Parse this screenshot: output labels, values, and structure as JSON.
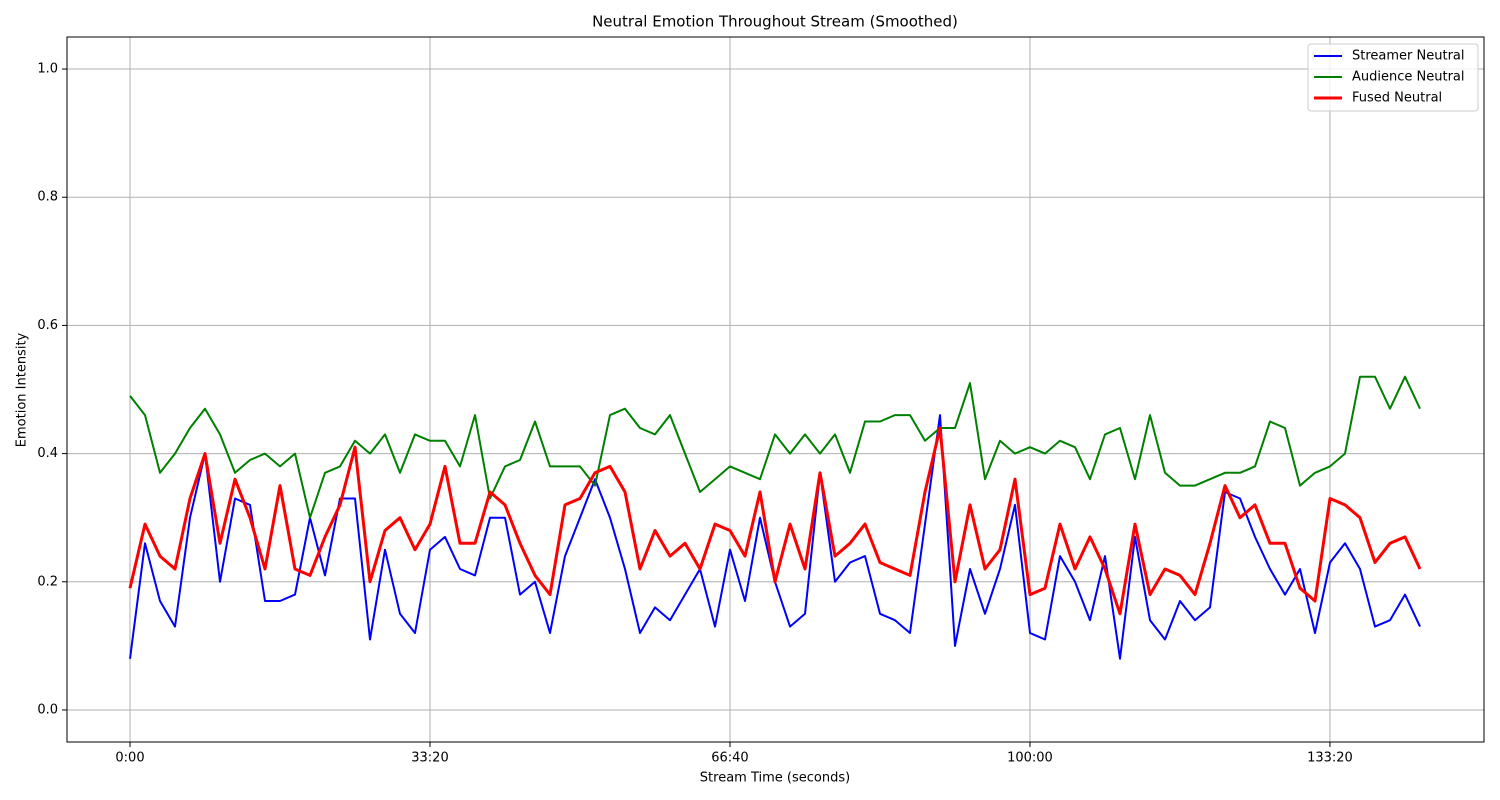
{
  "chart_data": {
    "type": "line",
    "title": "Neutral Emotion Throughout Stream (Smoothed)",
    "xlabel": "Stream Time (seconds)",
    "ylabel": "Emotion Intensity",
    "xlim": [
      -420,
      9027
    ],
    "ylim": [
      -0.05,
      1.05
    ],
    "xticks": [
      {
        "value": 0,
        "label": "0:00"
      },
      {
        "value": 2000,
        "label": "33:20"
      },
      {
        "value": 4000,
        "label": "66:40"
      },
      {
        "value": 6000,
        "label": "100:00"
      },
      {
        "value": 8000,
        "label": "133:20"
      }
    ],
    "yticks": [
      {
        "value": 0,
        "label": "0.0"
      },
      0.2,
      0.4,
      0.6,
      0.8,
      {
        "value": 1,
        "label": "1.0"
      }
    ],
    "grid": true,
    "legend": "upper right",
    "x": [
      0,
      100,
      200,
      300,
      400,
      500,
      600,
      700,
      800,
      900,
      1000,
      1100,
      1200,
      1300,
      1400,
      1500,
      1600,
      1700,
      1800,
      1900,
      2000,
      2100,
      2200,
      2300,
      2400,
      2500,
      2600,
      2700,
      2800,
      2900,
      3000,
      3100,
      3200,
      3300,
      3400,
      3500,
      3600,
      3700,
      3800,
      3900,
      4000,
      4100,
      4200,
      4300,
      4400,
      4500,
      4600,
      4700,
      4800,
      4900,
      5000,
      5100,
      5200,
      5300,
      5400,
      5500,
      5600,
      5700,
      5800,
      5900,
      6000,
      6100,
      6200,
      6300,
      6400,
      6500,
      6600,
      6700,
      6800,
      6900,
      7000,
      7100,
      7200,
      7300,
      7400,
      7500,
      7600,
      7700,
      7800,
      7900,
      8000,
      8100,
      8200,
      8300,
      8400,
      8500,
      8600
    ],
    "series": [
      {
        "name": "Streamer Neutral",
        "color": "#0000ff",
        "width": 2,
        "values": [
          0.08,
          0.26,
          0.17,
          0.13,
          0.3,
          0.4,
          0.2,
          0.33,
          0.32,
          0.17,
          0.17,
          0.18,
          0.3,
          0.21,
          0.33,
          0.33,
          0.11,
          0.25,
          0.15,
          0.12,
          0.25,
          0.27,
          0.22,
          0.21,
          0.3,
          0.3,
          0.18,
          0.2,
          0.12,
          0.24,
          0.3,
          0.36,
          0.3,
          0.22,
          0.12,
          0.16,
          0.14,
          0.18,
          0.22,
          0.13,
          0.25,
          0.17,
          0.3,
          0.2,
          0.13,
          0.15,
          0.37,
          0.2,
          0.23,
          0.24,
          0.15,
          0.14,
          0.12,
          0.29,
          0.46,
          0.1,
          0.22,
          0.15,
          0.22,
          0.32,
          0.12,
          0.11,
          0.24,
          0.2,
          0.14,
          0.24,
          0.08,
          0.27,
          0.14,
          0.11,
          0.17,
          0.14,
          0.16,
          0.34,
          0.33,
          0.27,
          0.22,
          0.18,
          0.22,
          0.12,
          0.23,
          0.26,
          0.22,
          0.13,
          0.14,
          0.18,
          0.13
        ]
      },
      {
        "name": "Audience Neutral",
        "color": "#008000",
        "width": 2,
        "values": [
          0.49,
          0.46,
          0.37,
          0.4,
          0.44,
          0.47,
          0.43,
          0.37,
          0.39,
          0.4,
          0.38,
          0.4,
          0.3,
          0.37,
          0.38,
          0.42,
          0.4,
          0.43,
          0.37,
          0.43,
          0.42,
          0.42,
          0.38,
          0.46,
          0.33,
          0.38,
          0.39,
          0.45,
          0.38,
          0.38,
          0.38,
          0.35,
          0.46,
          0.47,
          0.44,
          0.43,
          0.46,
          0.4,
          0.34,
          0.36,
          0.38,
          0.37,
          0.36,
          0.43,
          0.4,
          0.43,
          0.4,
          0.43,
          0.37,
          0.45,
          0.45,
          0.46,
          0.46,
          0.42,
          0.44,
          0.44,
          0.51,
          0.36,
          0.42,
          0.4,
          0.41,
          0.4,
          0.42,
          0.41,
          0.36,
          0.43,
          0.44,
          0.36,
          0.46,
          0.37,
          0.35,
          0.35,
          0.36,
          0.37,
          0.37,
          0.38,
          0.45,
          0.44,
          0.35,
          0.37,
          0.38,
          0.4,
          0.52,
          0.52,
          0.47,
          0.52,
          0.47
        ]
      },
      {
        "name": "Fused Neutral",
        "color": "#ff0000",
        "width": 3,
        "values": [
          0.19,
          0.29,
          0.24,
          0.22,
          0.33,
          0.4,
          0.26,
          0.36,
          0.3,
          0.22,
          0.35,
          0.22,
          0.21,
          0.27,
          0.32,
          0.41,
          0.2,
          0.28,
          0.3,
          0.25,
          0.29,
          0.38,
          0.26,
          0.26,
          0.34,
          0.32,
          0.26,
          0.21,
          0.18,
          0.32,
          0.33,
          0.37,
          0.38,
          0.34,
          0.22,
          0.28,
          0.24,
          0.26,
          0.22,
          0.29,
          0.28,
          0.24,
          0.34,
          0.2,
          0.29,
          0.22,
          0.37,
          0.24,
          0.26,
          0.29,
          0.23,
          0.22,
          0.21,
          0.34,
          0.44,
          0.2,
          0.32,
          0.22,
          0.25,
          0.36,
          0.18,
          0.19,
          0.29,
          0.22,
          0.27,
          0.22,
          0.15,
          0.29,
          0.18,
          0.22,
          0.21,
          0.18,
          0.26,
          0.35,
          0.3,
          0.32,
          0.26,
          0.26,
          0.19,
          0.17,
          0.33,
          0.32,
          0.3,
          0.23,
          0.26,
          0.27,
          0.22
        ]
      }
    ]
  }
}
